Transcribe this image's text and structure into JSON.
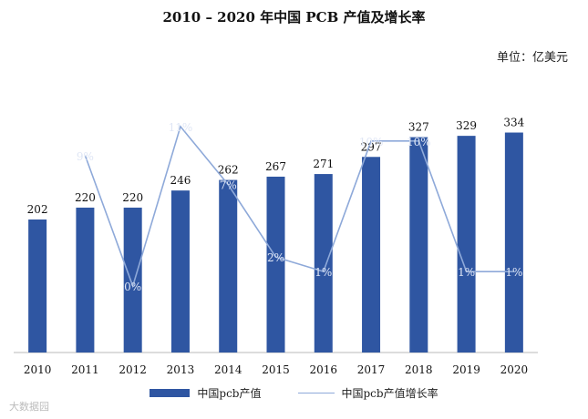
{
  "chart_data": {
    "type": "bar",
    "title": "2010 – 2020 年中国 PCB 产值及增长率",
    "unit_label": "单位：亿美元",
    "categories": [
      "2010",
      "2011",
      "2012",
      "2013",
      "2014",
      "2015",
      "2016",
      "2017",
      "2018",
      "2019",
      "2020"
    ],
    "series": [
      {
        "name": "中国pcb产值",
        "type": "bar",
        "color": "#2f56a2",
        "values": [
          202,
          220,
          220,
          246,
          262,
          267,
          271,
          297,
          327,
          329,
          334
        ]
      },
      {
        "name": "中国pcb产值增长率",
        "type": "line",
        "color": "#8ea9d9",
        "values": [
          null,
          9,
          0,
          11,
          7,
          2,
          1,
          10,
          10,
          1,
          1
        ],
        "labels": [
          null,
          "9%",
          "0%",
          "11%",
          "7%",
          "2%",
          "1%",
          "10%",
          "10%",
          "1%",
          "1%"
        ]
      }
    ],
    "ylim_bar": [
      0,
      400
    ],
    "ylim_line": [
      -1,
      12
    ],
    "grid": false,
    "legend_position": "bottom"
  },
  "watermark": "大数据园"
}
